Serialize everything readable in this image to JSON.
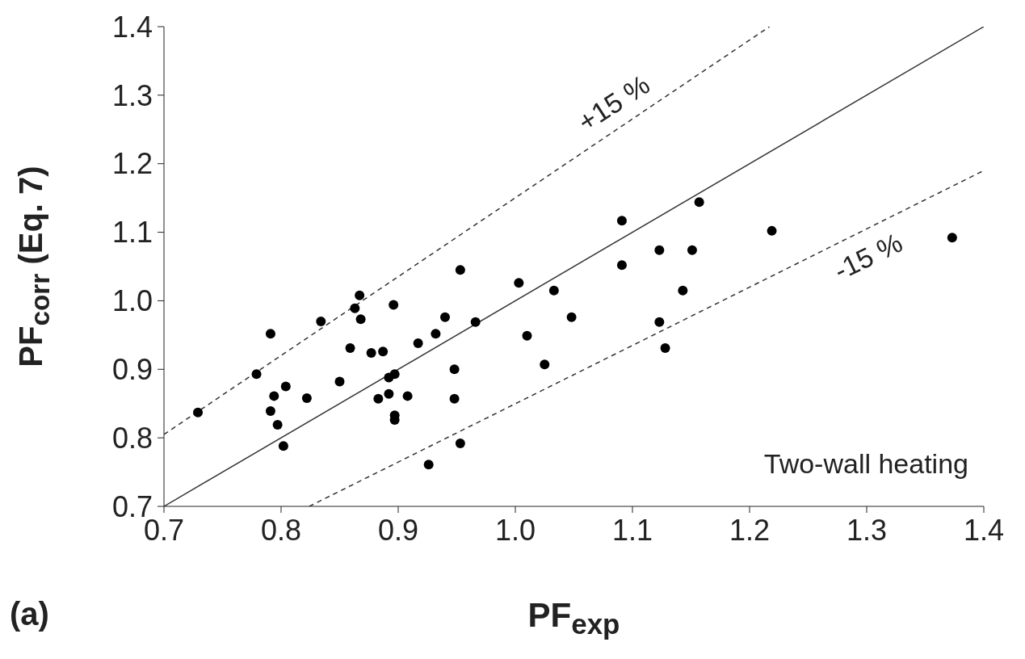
{
  "chart_data": {
    "type": "scatter",
    "xlabel": "PF$_{exp}$",
    "ylabel": "PF$_{corr}$ (Eq. 7)",
    "xlim": [
      0.7,
      1.4
    ],
    "ylim": [
      0.7,
      1.4
    ],
    "xticks": [
      {
        "value": 0.7,
        "label": "0.7"
      },
      {
        "value": 0.8,
        "label": "0.8"
      },
      {
        "value": 0.9,
        "label": "0.9"
      },
      {
        "value": 1.0,
        "label": "1.0"
      },
      {
        "value": 1.1,
        "label": "1.1"
      },
      {
        "value": 1.2,
        "label": "1.2"
      },
      {
        "value": 1.3,
        "label": "1.3"
      },
      {
        "value": 1.4,
        "label": "1.4"
      }
    ],
    "yticks": [
      {
        "value": 0.7,
        "label": "0.7"
      },
      {
        "value": 0.8,
        "label": "0.8"
      },
      {
        "value": 0.9,
        "label": "0.9"
      },
      {
        "value": 1.0,
        "label": "1.0"
      },
      {
        "value": 1.1,
        "label": "1.1"
      },
      {
        "value": 1.2,
        "label": "1.2"
      },
      {
        "value": 1.3,
        "label": "1.3"
      },
      {
        "value": 1.4,
        "label": "1.4"
      }
    ],
    "grid": false,
    "series": [
      {
        "marker": "circle",
        "color": "#000000",
        "x": [
          0.729,
          0.779,
          0.791,
          0.794,
          0.804,
          0.791,
          0.797,
          0.802,
          0.822,
          0.834,
          0.85,
          0.859,
          0.863,
          0.867,
          0.868,
          0.877,
          0.887,
          0.896,
          0.892,
          0.897,
          0.883,
          0.892,
          0.908,
          0.897,
          0.897,
          0.917,
          1.157,
          1.091,
          1.123,
          1.151,
          1.091,
          0.953,
          1.003,
          1.033,
          1.143,
          0.94,
          0.966,
          1.048,
          1.123,
          0.932,
          1.01,
          1.128,
          1.025,
          0.948,
          0.948,
          0.953,
          0.926,
          1.219,
          1.373
        ],
        "values": [
          0.837,
          0.893,
          0.952,
          0.861,
          0.875,
          0.839,
          0.819,
          0.788,
          0.858,
          0.97,
          0.882,
          0.931,
          0.989,
          1.008,
          0.973,
          0.924,
          0.926,
          0.994,
          0.888,
          0.893,
          0.857,
          0.864,
          0.861,
          0.833,
          0.826,
          0.938,
          1.144,
          1.117,
          1.074,
          1.074,
          1.052,
          1.045,
          1.026,
          1.015,
          1.015,
          0.976,
          0.969,
          0.976,
          0.969,
          0.952,
          0.949,
          0.931,
          0.907,
          0.9,
          0.857,
          0.792,
          0.761,
          1.102,
          1.092
        ]
      },
      {
        "type": "line",
        "marker": "none",
        "color": "#333333",
        "line_style": "solid",
        "x": [
          0.7,
          1.4
        ],
        "values": [
          0.7,
          1.4
        ]
      },
      {
        "type": "line",
        "marker": "none",
        "color": "#333333",
        "line_style": "dashed",
        "x": [
          0.7,
          1.217
        ],
        "values": [
          0.805,
          1.4
        ]
      },
      {
        "type": "line",
        "marker": "none",
        "color": "#333333",
        "line_style": "dashed",
        "x": [
          0.824,
          1.4
        ],
        "values": [
          0.7,
          1.19
        ]
      }
    ],
    "annotations": [
      "+15 %",
      "-15 %",
      "Two-wall heating",
      "(a)"
    ]
  }
}
